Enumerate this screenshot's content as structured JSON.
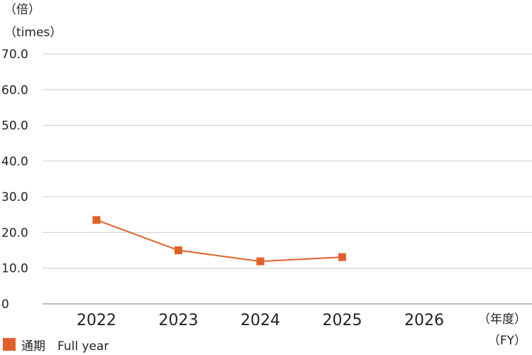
{
  "y_axis_label_line1": "（倍）",
  "y_axis_label_line2": "（times）",
  "x_axis_unit_line1": "（年度）",
  "x_axis_unit_line2": "（FY）",
  "legend_label": "通期　Full year",
  "colors": {
    "series": "#e0622a",
    "grid": "#cccccc",
    "axis": "#999999"
  },
  "chart_data": {
    "type": "line",
    "x": [
      "2022",
      "2023",
      "2024",
      "2025",
      "2026"
    ],
    "series": [
      {
        "name": "通期　Full year",
        "values": [
          23.5,
          15.0,
          11.9,
          13.1,
          null
        ]
      }
    ],
    "yticks": [
      "0",
      "10.0",
      "20.0",
      "30.0",
      "40.0",
      "50.0",
      "60.0",
      "70.0"
    ],
    "ylim": [
      0,
      70
    ],
    "grid": true,
    "legend": "bottom-left"
  }
}
